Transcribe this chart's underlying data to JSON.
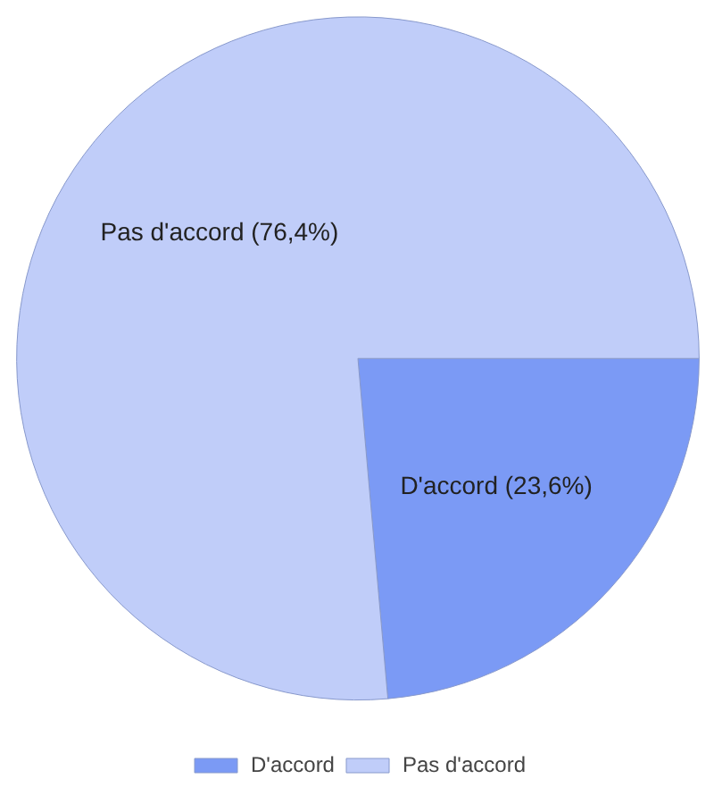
{
  "chart_data": {
    "type": "pie",
    "categories": [
      "D'accord",
      "Pas d'accord"
    ],
    "values": [
      23.6,
      76.4
    ],
    "colors": [
      "#7b9af5",
      "#c0cdf9"
    ],
    "value_labels": [
      "D'accord (23,6%)",
      "Pas d'accord (76,4%)"
    ],
    "legend": "bottom"
  }
}
